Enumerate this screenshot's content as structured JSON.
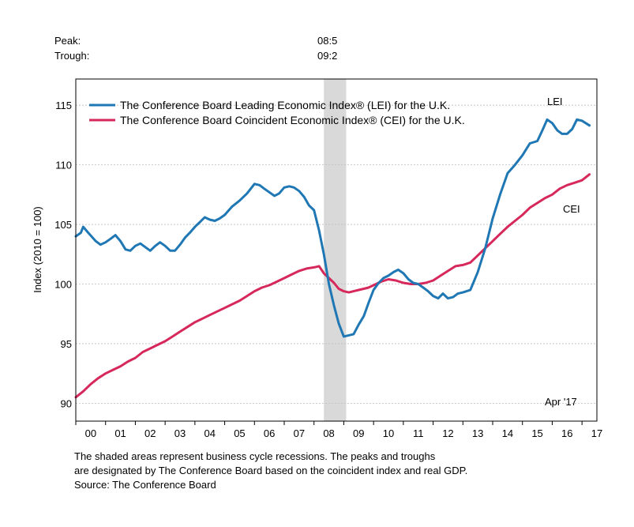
{
  "header": {
    "peak_label": "Peak:",
    "peak_value": "08:5",
    "trough_label": "Trough:",
    "trough_value": "09:2"
  },
  "footnote": {
    "line1": "The shaded areas represent business cycle recessions. The peaks and troughs",
    "line2": "are designated by The Conference Board based on the coincident index and real GDP.",
    "line3": "Source: The Conference Board"
  },
  "chart_data": {
    "type": "line",
    "ylabel": "Index (2010 = 100)",
    "ylim": [
      88.5,
      117.2
    ],
    "xlim": [
      2000.0,
      2017.5
    ],
    "y_ticks": [
      90,
      95,
      100,
      105,
      110,
      115
    ],
    "x_ticks": [
      "00",
      "01",
      "02",
      "03",
      "04",
      "05",
      "06",
      "07",
      "08",
      "09",
      "10",
      "11",
      "12",
      "13",
      "14",
      "15",
      "16",
      "17"
    ],
    "grid": "horizontal-dashed",
    "legend_position": "top-left",
    "recession": {
      "start": 2008.33,
      "end": 2009.08
    },
    "colors": {
      "LEI": "#1f77b4",
      "CEI": "#d6285a",
      "recession": "#d9d9d9"
    },
    "annotations": {
      "lei_label": "LEI",
      "cei_label": "CEI",
      "date_label": "Apr '17"
    },
    "series": [
      {
        "name": "The Conference Board Leading Economic Index® (LEI) for the U.K.",
        "short": "LEI",
        "x": [
          2000.0,
          2000.17,
          2000.25,
          2000.42,
          2000.67,
          2000.83,
          2001.0,
          2001.17,
          2001.33,
          2001.5,
          2001.67,
          2001.83,
          2002.0,
          2002.17,
          2002.33,
          2002.5,
          2002.67,
          2002.83,
          2003.0,
          2003.17,
          2003.33,
          2003.5,
          2003.67,
          2003.83,
          2004.0,
          2004.17,
          2004.33,
          2004.5,
          2004.67,
          2004.83,
          2005.0,
          2005.25,
          2005.5,
          2005.75,
          2006.0,
          2006.17,
          2006.33,
          2006.5,
          2006.67,
          2006.83,
          2007.0,
          2007.17,
          2007.33,
          2007.5,
          2007.67,
          2007.83,
          2008.0,
          2008.17,
          2008.33,
          2008.5,
          2008.67,
          2008.83,
          2009.0,
          2009.17,
          2009.33,
          2009.5,
          2009.67,
          2009.83,
          2010.0,
          2010.17,
          2010.33,
          2010.5,
          2010.67,
          2010.83,
          2011.0,
          2011.17,
          2011.33,
          2011.5,
          2011.67,
          2011.83,
          2012.0,
          2012.17,
          2012.33,
          2012.5,
          2012.67,
          2012.83,
          2013.0,
          2013.25,
          2013.5,
          2013.75,
          2014.0,
          2014.25,
          2014.5,
          2014.75,
          2015.0,
          2015.25,
          2015.5,
          2015.67,
          2015.83,
          2016.0,
          2016.17,
          2016.33,
          2016.5,
          2016.67,
          2016.83,
          2017.0,
          2017.25
        ],
        "values": [
          104.0,
          104.3,
          104.8,
          104.3,
          103.6,
          103.3,
          103.5,
          103.8,
          104.1,
          103.6,
          102.9,
          102.8,
          103.2,
          103.4,
          103.1,
          102.8,
          103.2,
          103.5,
          103.2,
          102.8,
          102.8,
          103.3,
          103.9,
          104.3,
          104.8,
          105.2,
          105.6,
          105.4,
          105.3,
          105.5,
          105.8,
          106.5,
          107.0,
          107.6,
          108.4,
          108.3,
          108.0,
          107.7,
          107.4,
          107.6,
          108.1,
          108.2,
          108.1,
          107.8,
          107.3,
          106.6,
          106.2,
          104.5,
          102.5,
          100.0,
          98.2,
          96.7,
          95.6,
          95.7,
          95.8,
          96.6,
          97.3,
          98.4,
          99.5,
          100.1,
          100.5,
          100.7,
          101.0,
          101.2,
          100.9,
          100.4,
          100.1,
          100.0,
          99.7,
          99.4,
          99.0,
          98.8,
          99.2,
          98.8,
          98.9,
          99.2,
          99.3,
          99.5,
          101.0,
          103.0,
          105.5,
          107.5,
          109.3,
          110.0,
          110.8,
          111.8,
          112.0,
          112.9,
          113.8,
          113.5,
          112.9,
          112.6,
          112.6,
          113.0,
          113.8,
          113.7,
          113.3
        ]
      },
      {
        "name": "The Conference Board Coincident Economic Index® (CEI) for the U.K.",
        "short": "CEI",
        "x": [
          2000.0,
          2000.25,
          2000.5,
          2000.75,
          2001.0,
          2001.25,
          2001.5,
          2001.75,
          2002.0,
          2002.25,
          2002.5,
          2002.75,
          2003.0,
          2003.25,
          2003.5,
          2003.75,
          2004.0,
          2004.25,
          2004.5,
          2004.75,
          2005.0,
          2005.25,
          2005.5,
          2005.75,
          2006.0,
          2006.25,
          2006.5,
          2006.75,
          2007.0,
          2007.25,
          2007.5,
          2007.75,
          2008.0,
          2008.17,
          2008.33,
          2008.5,
          2008.67,
          2008.83,
          2009.0,
          2009.17,
          2009.33,
          2009.5,
          2009.67,
          2009.83,
          2010.0,
          2010.25,
          2010.5,
          2010.75,
          2011.0,
          2011.25,
          2011.5,
          2011.75,
          2012.0,
          2012.25,
          2012.5,
          2012.75,
          2013.0,
          2013.25,
          2013.5,
          2013.75,
          2014.0,
          2014.25,
          2014.5,
          2014.75,
          2015.0,
          2015.25,
          2015.5,
          2015.75,
          2016.0,
          2016.25,
          2016.5,
          2016.75,
          2017.0,
          2017.25
        ],
        "values": [
          90.5,
          91.0,
          91.6,
          92.1,
          92.5,
          92.8,
          93.1,
          93.5,
          93.8,
          94.3,
          94.6,
          94.9,
          95.2,
          95.6,
          96.0,
          96.4,
          96.8,
          97.1,
          97.4,
          97.7,
          98.0,
          98.3,
          98.6,
          99.0,
          99.4,
          99.7,
          99.9,
          100.2,
          100.5,
          100.8,
          101.1,
          101.3,
          101.4,
          101.5,
          100.9,
          100.5,
          100.1,
          99.6,
          99.4,
          99.3,
          99.4,
          99.5,
          99.6,
          99.7,
          99.9,
          100.2,
          100.4,
          100.3,
          100.1,
          100.0,
          100.0,
          100.1,
          100.3,
          100.7,
          101.1,
          101.5,
          101.6,
          101.8,
          102.4,
          103.0,
          103.6,
          104.2,
          104.8,
          105.3,
          105.8,
          106.4,
          106.8,
          107.2,
          107.5,
          108.0,
          108.3,
          108.5,
          108.7,
          109.2
        ]
      }
    ]
  }
}
